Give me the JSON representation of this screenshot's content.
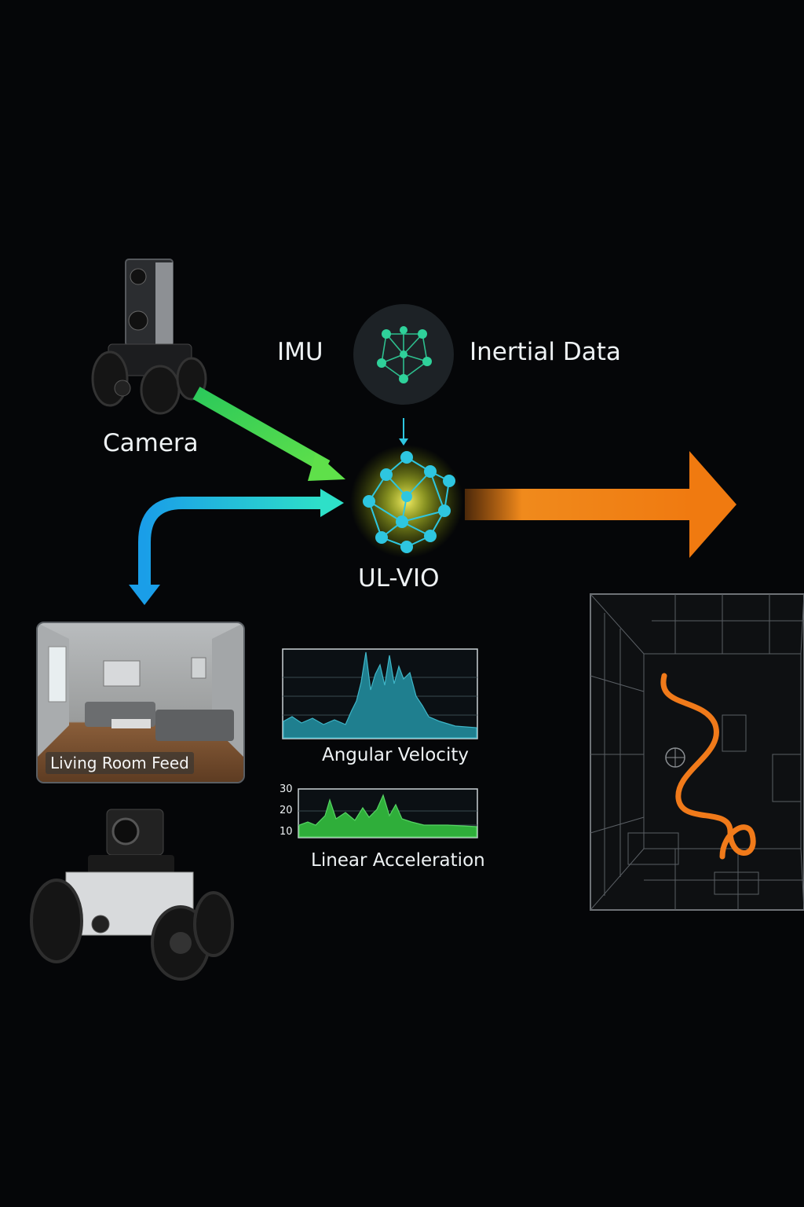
{
  "labels": {
    "imu": "IMU",
    "inertial_data": "Inertial Data",
    "camera": "Camera",
    "ulvio": "UL-VIO",
    "feed_caption": "Living Room Feed",
    "angular_velocity": "Angular Velocity",
    "linear_acceleration": "Linear Acceleration"
  },
  "accel_ticks": [
    "30",
    "20",
    "10"
  ],
  "colors": {
    "background": "#050608",
    "camera_arrow": "#3bd45a",
    "feed_arrow": "#1ab0e8",
    "output_arrow": "#f08a1c",
    "imu_node": "#2fd19a",
    "ulvio_node": "#2ec6e0",
    "ulvio_glow": "#e8f040",
    "trajectory": "#f07a1a",
    "angular_chart": "#1f7f8f",
    "accel_chart": "#2fae3a"
  },
  "icons": [
    "camera-robot-icon",
    "imu-network-icon",
    "ulvio-network-icon",
    "feed-robot-icon",
    "map-wireframe-icon"
  ]
}
